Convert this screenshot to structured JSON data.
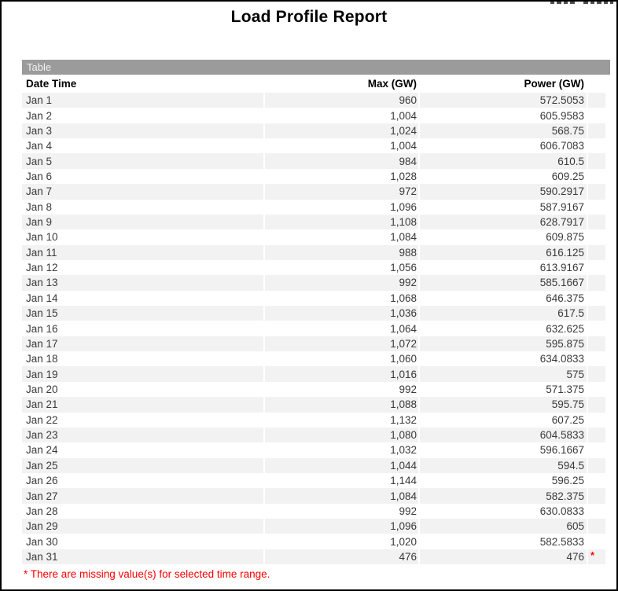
{
  "page": {
    "title": "Load Profile Report"
  },
  "colors": {
    "section_bar_bg": "#9b9b9b",
    "row_alt_bg": "#f2f2f2",
    "flag_red": "#ff0000"
  },
  "table": {
    "section_label": "Table",
    "columns": [
      "Date Time",
      "Max (GW)",
      "Power (GW)"
    ],
    "rows": [
      {
        "date": "Jan 1",
        "max": "960",
        "power": "572.5053",
        "flag": ""
      },
      {
        "date": "Jan 2",
        "max": "1,004",
        "power": "605.9583",
        "flag": ""
      },
      {
        "date": "Jan 3",
        "max": "1,024",
        "power": "568.75",
        "flag": ""
      },
      {
        "date": "Jan 4",
        "max": "1,004",
        "power": "606.7083",
        "flag": ""
      },
      {
        "date": "Jan 5",
        "max": "984",
        "power": "610.5",
        "flag": ""
      },
      {
        "date": "Jan 6",
        "max": "1,028",
        "power": "609.25",
        "flag": ""
      },
      {
        "date": "Jan 7",
        "max": "972",
        "power": "590.2917",
        "flag": ""
      },
      {
        "date": "Jan 8",
        "max": "1,096",
        "power": "587.9167",
        "flag": ""
      },
      {
        "date": "Jan 9",
        "max": "1,108",
        "power": "628.7917",
        "flag": ""
      },
      {
        "date": "Jan 10",
        "max": "1,084",
        "power": "609.875",
        "flag": ""
      },
      {
        "date": "Jan 11",
        "max": "988",
        "power": "616.125",
        "flag": ""
      },
      {
        "date": "Jan 12",
        "max": "1,056",
        "power": "613.9167",
        "flag": ""
      },
      {
        "date": "Jan 13",
        "max": "992",
        "power": "585.1667",
        "flag": ""
      },
      {
        "date": "Jan 14",
        "max": "1,068",
        "power": "646.375",
        "flag": ""
      },
      {
        "date": "Jan 15",
        "max": "1,036",
        "power": "617.5",
        "flag": ""
      },
      {
        "date": "Jan 16",
        "max": "1,064",
        "power": "632.625",
        "flag": ""
      },
      {
        "date": "Jan 17",
        "max": "1,072",
        "power": "595.875",
        "flag": ""
      },
      {
        "date": "Jan 18",
        "max": "1,060",
        "power": "634.0833",
        "flag": ""
      },
      {
        "date": "Jan 19",
        "max": "1,016",
        "power": "575",
        "flag": ""
      },
      {
        "date": "Jan 20",
        "max": "992",
        "power": "571.375",
        "flag": ""
      },
      {
        "date": "Jan 21",
        "max": "1,088",
        "power": "595.75",
        "flag": ""
      },
      {
        "date": "Jan 22",
        "max": "1,132",
        "power": "607.25",
        "flag": ""
      },
      {
        "date": "Jan 23",
        "max": "1,080",
        "power": "604.5833",
        "flag": ""
      },
      {
        "date": "Jan 24",
        "max": "1,032",
        "power": "596.1667",
        "flag": ""
      },
      {
        "date": "Jan 25",
        "max": "1,044",
        "power": "594.5",
        "flag": ""
      },
      {
        "date": "Jan 26",
        "max": "1,144",
        "power": "596.25",
        "flag": ""
      },
      {
        "date": "Jan 27",
        "max": "1,084",
        "power": "582.375",
        "flag": ""
      },
      {
        "date": "Jan 28",
        "max": "992",
        "power": "630.0833",
        "flag": ""
      },
      {
        "date": "Jan 29",
        "max": "1,096",
        "power": "605",
        "flag": ""
      },
      {
        "date": "Jan 30",
        "max": "1,020",
        "power": "582.5833",
        "flag": ""
      },
      {
        "date": "Jan 31",
        "max": "476",
        "power": "476",
        "flag": "*"
      }
    ],
    "footnote": "* There are missing value(s) for selected time range."
  }
}
